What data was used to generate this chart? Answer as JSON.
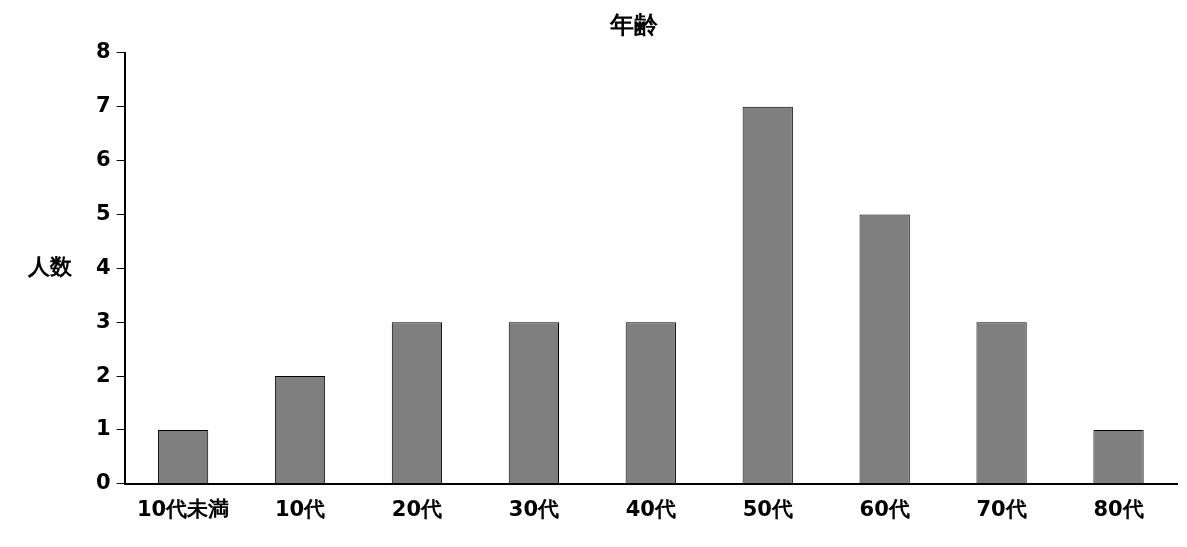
{
  "chart_data": {
    "type": "bar",
    "title": "年齢",
    "ylabel": "人数",
    "categories": [
      "10代未満",
      "10代",
      "20代",
      "30代",
      "40代",
      "50代",
      "60代",
      "70代",
      "80代"
    ],
    "values": [
      1,
      2,
      3,
      3,
      3,
      7,
      5,
      3,
      1
    ],
    "color": "#7f7f7f",
    "ylim": [
      0,
      8
    ],
    "yticks": [
      0,
      1,
      2,
      3,
      4,
      5,
      6,
      7,
      8
    ],
    "grid": false,
    "legend": false
  }
}
